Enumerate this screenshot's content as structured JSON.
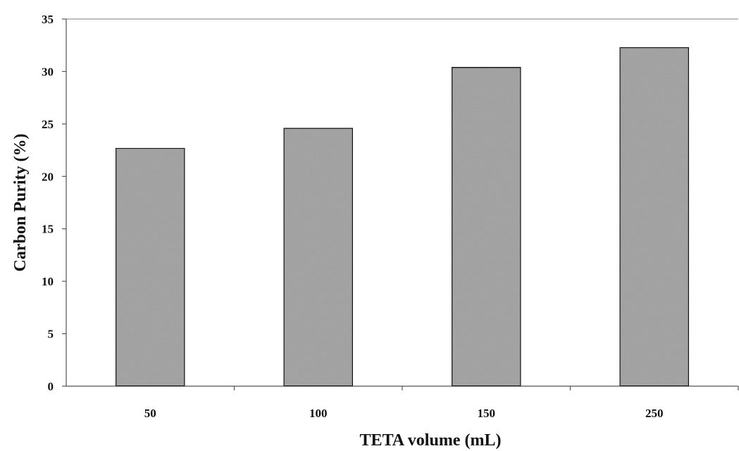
{
  "chart_data": {
    "type": "bar",
    "categories": [
      "50",
      "100",
      "150",
      "250"
    ],
    "values": [
      22.7,
      24.6,
      30.4,
      32.3
    ],
    "title": "",
    "xlabel": "TETA volume (mL)",
    "ylabel": "Carbon Purity (%)",
    "ylim": [
      0,
      35
    ],
    "yticks": [
      0,
      5,
      10,
      15,
      20,
      25,
      30,
      35
    ],
    "grid": false,
    "legend": "none",
    "colors": {
      "bar_fill": "#a9a9a9",
      "bar_stroke": "#1a1a1a",
      "axis": "#555555"
    }
  }
}
